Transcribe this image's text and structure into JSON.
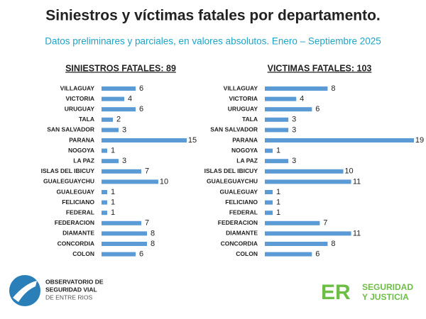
{
  "title": "Siniestros y víctimas fatales por departamento.",
  "subtitle": "Datos preliminares y parciales, en valores absolutos. Enero – Septiembre 2025",
  "chart_data": [
    {
      "type": "bar",
      "orientation": "horizontal",
      "title": "SINIESTROS FATALES: 89",
      "color": "#5b9bd5",
      "categories": [
        "VILLAGUAY",
        "VICTORIA",
        "URUGUAY",
        "TALA",
        "SAN SALVADOR",
        "PARANA",
        "NOGOYA",
        "LA PAZ",
        "ISLAS DEL IBICUY",
        "GUALEGUAYCHU",
        "GUALEGUAY",
        "FELICIANO",
        "FEDERAL",
        "FEDERACION",
        "DIAMANTE",
        "CONCORDIA",
        "COLON"
      ],
      "values": [
        6,
        4,
        6,
        2,
        3,
        15,
        1,
        3,
        7,
        10,
        1,
        1,
        1,
        7,
        8,
        8,
        6
      ]
    },
    {
      "type": "bar",
      "orientation": "horizontal",
      "title": "VICTIMAS FATALES: 103",
      "color": "#5b9bd5",
      "categories": [
        "VILLAGUAY",
        "VICTORIA",
        "URUGUAY",
        "TALA",
        "SAN SALVADOR",
        "PARANA",
        "NOGOYA",
        "LA PAZ",
        "ISLAS DEL IBICUY",
        "GUALEGUAYCHU",
        "GUALEGUAY",
        "FELICIANO",
        "FEDERAL",
        "FEDERACION",
        "DIAMANTE",
        "CONCORDIA",
        "COLON"
      ],
      "values": [
        8,
        4,
        6,
        3,
        3,
        19,
        1,
        3,
        10,
        11,
        1,
        1,
        1,
        7,
        11,
        8,
        6
      ]
    }
  ],
  "footer": {
    "left": [
      "OBSERVATORIO DE",
      "SEGURIDAD VIAL",
      "DE ENTRE RIOS"
    ],
    "right_mark": "ER",
    "right": [
      "SEGURIDAD",
      "Y JUSTICIA"
    ]
  }
}
